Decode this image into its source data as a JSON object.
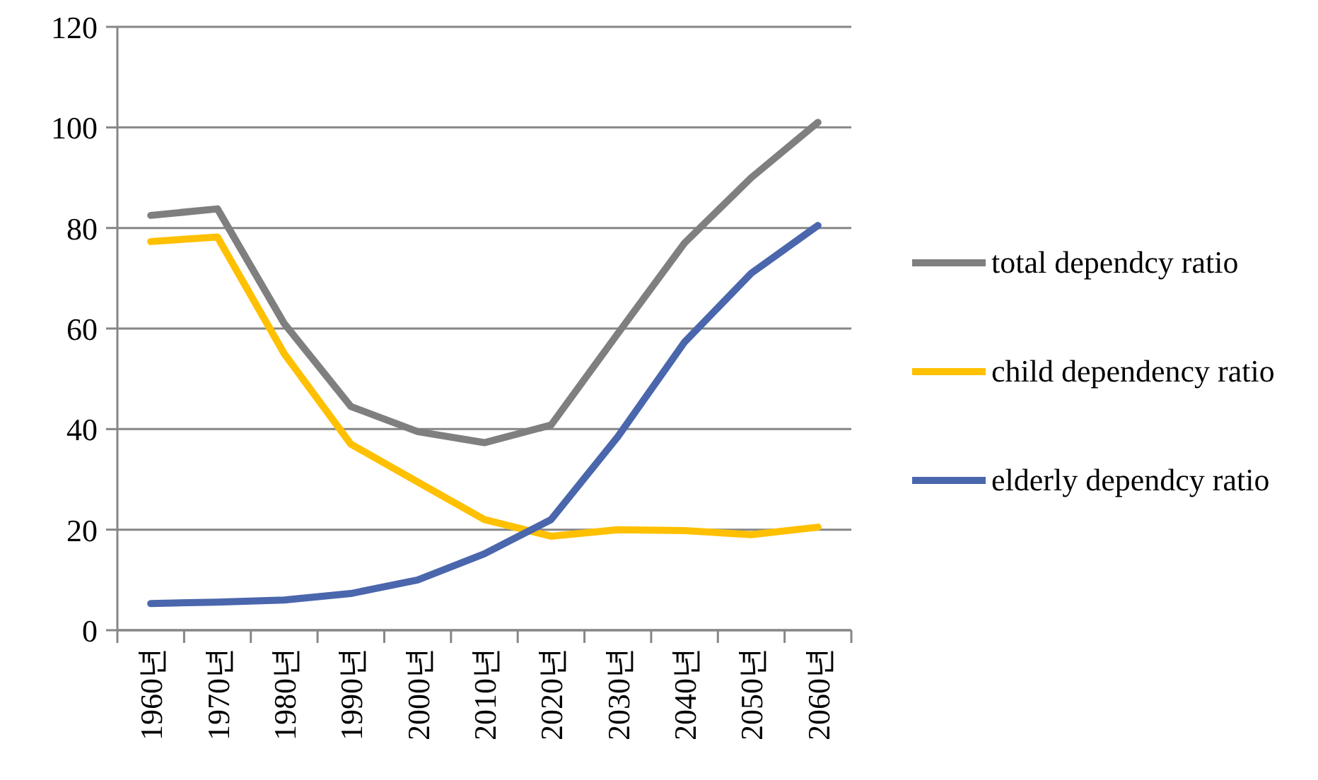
{
  "chart_data": {
    "type": "line",
    "categories": [
      "1960년",
      "1970년",
      "1980년",
      "1990년",
      "2000년",
      "2010년",
      "2020년",
      "2030년",
      "2040년",
      "2050년",
      "2060년"
    ],
    "series": [
      {
        "name": "total dependcy ratio",
        "color": "#7f7f7f",
        "values": [
          82.5,
          83.8,
          61,
          44.5,
          39.5,
          37.3,
          40.8,
          59,
          77,
          90,
          101
        ]
      },
      {
        "name": "child dependency ratio",
        "color": "#ffc000",
        "values": [
          77.3,
          78.2,
          55,
          37,
          29.5,
          22,
          18.7,
          20,
          19.8,
          19,
          20.5
        ]
      },
      {
        "name": "elderly dependcy ratio",
        "color": "#4a66ac",
        "values": [
          5.3,
          5.6,
          6,
          7.3,
          10,
          15.2,
          22,
          38.5,
          57.3,
          71,
          80.5
        ]
      }
    ],
    "ylim": [
      0,
      120
    ],
    "yticks": [
      0,
      20,
      40,
      60,
      80,
      100,
      120
    ],
    "grid": "y",
    "legend": "right",
    "marker": "none",
    "line_style": "solid"
  }
}
